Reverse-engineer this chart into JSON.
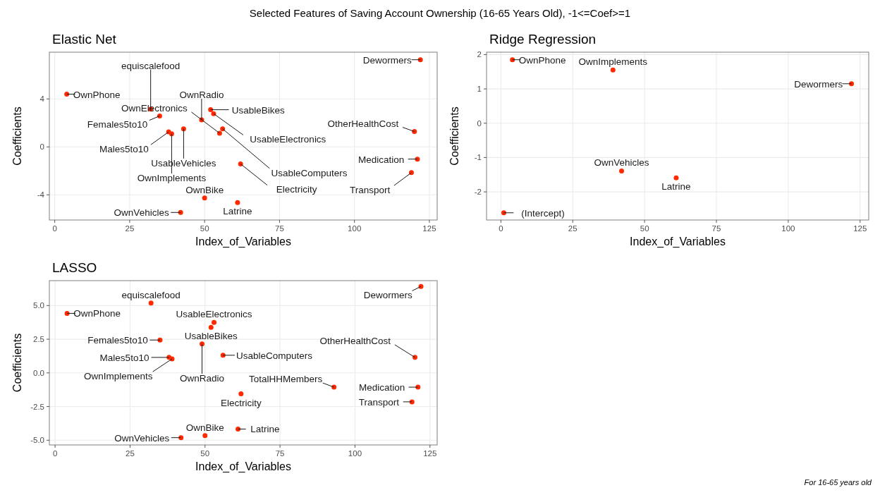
{
  "chart_data": [
    {
      "type": "other",
      "title": "Selected Features of Saving Account Ownership (16-65 Years Old), -1<=Coef>=1",
      "annotations": [
        "For 16-65 years old"
      ]
    },
    {
      "type": "scatter",
      "title": "Elastic Net",
      "xlabel": "Index_of_Variables",
      "ylabel": "Coefficients",
      "xlim": [
        -1.8,
        127.6
      ],
      "ylim": [
        -6.1,
        7.9
      ],
      "xticks": [
        0,
        25,
        50,
        75,
        100,
        125
      ],
      "yticks": [
        -4,
        0,
        4
      ],
      "grid": true,
      "marker": "circle",
      "x": [
        4,
        32,
        35,
        38,
        39,
        43,
        49,
        52,
        53,
        56,
        55,
        62,
        50,
        61,
        42,
        122,
        120,
        121,
        119
      ],
      "series": [
        {
          "color": "#ff2a00",
          "values": [
            4.4,
            3.15,
            2.58,
            1.25,
            1.09,
            1.51,
            2.25,
            3.1,
            2.77,
            1.51,
            1.14,
            -1.42,
            -4.26,
            -4.64,
            -5.47,
            7.27,
            1.28,
            -1.02,
            -2.15
          ]
        }
      ],
      "annotations": [
        {
          "text": "OwnPhone",
          "x": 4,
          "y": 4.4
        },
        {
          "text": "equiscalefood",
          "x": 32,
          "y": 3.15
        },
        {
          "text": "Females5to10",
          "x": 35,
          "y": 2.58
        },
        {
          "text": "Males5to10",
          "x": 38,
          "y": 1.25
        },
        {
          "text": "OwnImplements",
          "x": 39,
          "y": 1.09
        },
        {
          "text": "UsableVehicles",
          "x": 43,
          "y": 1.51
        },
        {
          "text": "OwnRadio",
          "x": 49,
          "y": 2.25
        },
        {
          "text": "UsableBikes",
          "x": 52,
          "y": 3.1
        },
        {
          "text": "UsableElectronics",
          "x": 53,
          "y": 2.77
        },
        {
          "text": "UsableComputers",
          "x": 56,
          "y": 1.51
        },
        {
          "text": "OwnElectronics",
          "x": 55,
          "y": 1.14
        },
        {
          "text": "Electricity",
          "x": 62,
          "y": -1.42
        },
        {
          "text": "OwnBike",
          "x": 50,
          "y": -4.26
        },
        {
          "text": "Latrine",
          "x": 61,
          "y": -4.64
        },
        {
          "text": "OwnVehicles",
          "x": 42,
          "y": -5.47
        },
        {
          "text": "Dewormers",
          "x": 122,
          "y": 7.27
        },
        {
          "text": "OtherHealthCost",
          "x": 120,
          "y": 1.28
        },
        {
          "text": "Medication",
          "x": 121,
          "y": -1.02
        },
        {
          "text": "Transport",
          "x": 119,
          "y": -2.15
        }
      ]
    },
    {
      "type": "scatter",
      "title": "Ridge Regression",
      "xlabel": "Index_of_Variables",
      "ylabel": "Coefficients",
      "xlim": [
        -5,
        128
      ],
      "ylim": [
        -2.82,
        2.07
      ],
      "xticks": [
        0,
        25,
        50,
        75,
        100,
        125
      ],
      "yticks": [
        -2,
        -1,
        0,
        1,
        2
      ],
      "grid": true,
      "marker": "circle",
      "x": [
        4,
        39,
        122,
        42,
        61,
        1
      ],
      "series": [
        {
          "color": "#ff2a00",
          "values": [
            1.85,
            1.55,
            1.15,
            -1.39,
            -1.59,
            -2.61
          ]
        }
      ],
      "annotations": [
        {
          "text": "OwnPhone",
          "x": 4,
          "y": 1.85
        },
        {
          "text": "OwnImplements",
          "x": 39,
          "y": 1.55
        },
        {
          "text": "Dewormers",
          "x": 122,
          "y": 1.15
        },
        {
          "text": "OwnVehicles",
          "x": 42,
          "y": -1.39
        },
        {
          "text": "Latrine",
          "x": 61,
          "y": -1.59
        },
        {
          "text": "(Intercept)",
          "x": 1,
          "y": -2.61
        }
      ]
    },
    {
      "type": "scatter",
      "title": "LASSO",
      "xlabel": "Index_of_Variables",
      "ylabel": "Coefficients",
      "xlim": [
        -1.9,
        127.4
      ],
      "ylim": [
        -5.35,
        6.85
      ],
      "xticks": [
        0,
        25,
        50,
        75,
        100,
        125
      ],
      "yticks": [
        {
          "value": -5,
          "label": "-5.0"
        },
        {
          "value": -2.5,
          "label": "-2.5"
        },
        {
          "value": 0,
          "label": "0.0"
        },
        {
          "value": 2.5,
          "label": "2.5"
        },
        {
          "value": 5,
          "label": "5.0"
        }
      ],
      "grid": true,
      "marker": "circle",
      "x": [
        122,
        32,
        4,
        53,
        52,
        35,
        49,
        38,
        39,
        56,
        120,
        93,
        121,
        62,
        119,
        61,
        50,
        42
      ],
      "series": [
        {
          "color": "#ff2a00",
          "values": [
            6.42,
            5.19,
            4.42,
            3.75,
            3.38,
            2.44,
            2.15,
            1.15,
            1.04,
            1.31,
            1.15,
            -1.06,
            -1.06,
            -1.56,
            -2.15,
            -4.17,
            -4.65,
            -4.81
          ]
        }
      ],
      "annotations": [
        {
          "text": "Dewormers",
          "x": 122,
          "y": 6.42
        },
        {
          "text": "equiscalefood",
          "x": 32,
          "y": 5.19
        },
        {
          "text": "OwnPhone",
          "x": 4,
          "y": 4.42
        },
        {
          "text": "UsableElectronics",
          "x": 53,
          "y": 3.75
        },
        {
          "text": "UsableBikes",
          "x": 52,
          "y": 3.38
        },
        {
          "text": "Females5to10",
          "x": 35,
          "y": 2.44
        },
        {
          "text": "OwnRadio",
          "x": 49,
          "y": 2.15
        },
        {
          "text": "Males5to10",
          "x": 38,
          "y": 1.15
        },
        {
          "text": "OwnImplements",
          "x": 39,
          "y": 1.04
        },
        {
          "text": "UsableComputers",
          "x": 56,
          "y": 1.31
        },
        {
          "text": "OtherHealthCost",
          "x": 120,
          "y": 1.15
        },
        {
          "text": "TotalHHMembers",
          "x": 93,
          "y": -1.06
        },
        {
          "text": "Medication",
          "x": 121,
          "y": -1.06
        },
        {
          "text": "Electricity",
          "x": 62,
          "y": -1.56
        },
        {
          "text": "Transport",
          "x": 119,
          "y": -2.15
        },
        {
          "text": "Latrine",
          "x": 61,
          "y": -4.17
        },
        {
          "text": "OwnBike",
          "x": 50,
          "y": -4.65
        },
        {
          "text": "OwnVehicles",
          "x": 42,
          "y": -4.81
        }
      ]
    }
  ]
}
